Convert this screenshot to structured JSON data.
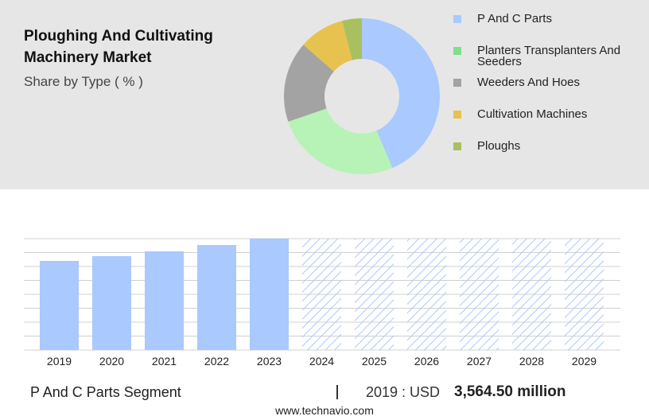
{
  "chart_data": [
    {
      "type": "pie",
      "title": "Ploughing And Cultivating Machinery Market",
      "subtitle": "Share by Type ( % )",
      "categories": [
        "P And C Parts",
        "Planters Transplanters And Seeders",
        "Weeders And Hoes",
        "Cultivation Machines",
        "Ploughs"
      ],
      "values": [
        43.6,
        26.1,
        16.8,
        9.4,
        4.1
      ],
      "colors": [
        "#a9c9ff",
        "#b7f2b7",
        "#a3a3a3",
        "#e8c24e",
        "#a8c060"
      ],
      "legend_colors": [
        "#a9c9ff",
        "#7fe08a",
        "#a3a3a3",
        "#e8c24e",
        "#a8c060"
      ]
    },
    {
      "type": "bar",
      "categories": [
        "2019",
        "2020",
        "2021",
        "2022",
        "2023",
        "2024",
        "2025",
        "2026",
        "2027",
        "2028",
        "2029"
      ],
      "values": [
        3564.5,
        3756,
        3947,
        4201,
        4456,
        null,
        null,
        null,
        null,
        null,
        null
      ],
      "color": "#a9c9ff",
      "ylim": [
        0,
        4456
      ],
      "grid": true
    }
  ],
  "footer": {
    "segment": "P And C Parts Segment",
    "year_label": "2019 : USD",
    "value": "3,564.50 million",
    "site": "www.technavio.com"
  }
}
